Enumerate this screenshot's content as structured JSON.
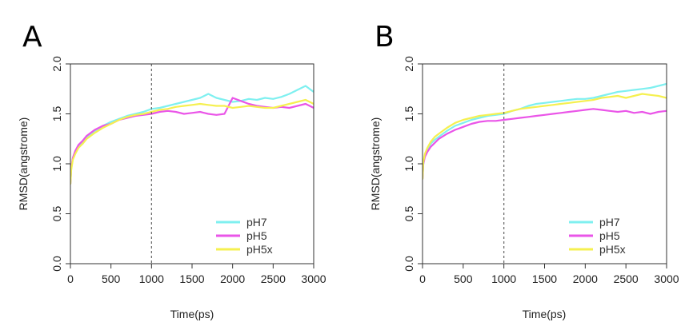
{
  "chart_data": [
    {
      "type": "line",
      "panel_label": "A",
      "xlabel": "Time(ps)",
      "ylabel": "RMSD(angstrome)",
      "xlim": [
        0,
        3000
      ],
      "ylim": [
        0,
        2.0
      ],
      "xticks": [
        "0",
        "500",
        "1000",
        "1500",
        "2000",
        "2500",
        "3000"
      ],
      "yticks": [
        "0.0",
        "0.5",
        "1.0",
        "1.5",
        "2.0"
      ],
      "reference_line_x": 1000,
      "legend_position": "bottom-right",
      "series": [
        {
          "name": "pH7",
          "color": "#7ff0f0",
          "x": [
            0,
            10,
            30,
            60,
            100,
            150,
            200,
            300,
            400,
            500,
            600,
            700,
            800,
            900,
            1000,
            1100,
            1200,
            1300,
            1400,
            1500,
            1600,
            1700,
            1800,
            1900,
            2000,
            2100,
            2200,
            2300,
            2400,
            2500,
            2600,
            2700,
            2800,
            2850,
            2900,
            2950,
            3000
          ],
          "y": [
            0.8,
            0.95,
            1.05,
            1.12,
            1.18,
            1.22,
            1.27,
            1.33,
            1.38,
            1.42,
            1.45,
            1.48,
            1.5,
            1.52,
            1.55,
            1.56,
            1.58,
            1.6,
            1.62,
            1.64,
            1.66,
            1.7,
            1.66,
            1.64,
            1.62,
            1.63,
            1.65,
            1.64,
            1.66,
            1.65,
            1.67,
            1.7,
            1.74,
            1.76,
            1.78,
            1.75,
            1.72
          ]
        },
        {
          "name": "pH5",
          "color": "#ea55e8",
          "x": [
            0,
            10,
            30,
            60,
            100,
            150,
            200,
            300,
            400,
            500,
            600,
            700,
            800,
            900,
            1000,
            1100,
            1200,
            1300,
            1400,
            1500,
            1600,
            1700,
            1800,
            1900,
            2000,
            2100,
            2200,
            2300,
            2400,
            2500,
            2600,
            2700,
            2800,
            2900,
            3000
          ],
          "y": [
            0.8,
            0.96,
            1.06,
            1.13,
            1.19,
            1.23,
            1.28,
            1.34,
            1.38,
            1.4,
            1.44,
            1.46,
            1.48,
            1.49,
            1.5,
            1.52,
            1.53,
            1.52,
            1.5,
            1.51,
            1.52,
            1.5,
            1.49,
            1.5,
            1.66,
            1.63,
            1.6,
            1.58,
            1.57,
            1.56,
            1.57,
            1.56,
            1.58,
            1.6,
            1.56
          ]
        },
        {
          "name": "pH5x",
          "color": "#f5f050",
          "x": [
            0,
            10,
            30,
            60,
            100,
            150,
            200,
            300,
            400,
            500,
            600,
            700,
            800,
            900,
            1000,
            1100,
            1200,
            1300,
            1400,
            1500,
            1600,
            1700,
            1800,
            1900,
            2000,
            2100,
            2200,
            2300,
            2400,
            2500,
            2600,
            2700,
            2800,
            2900,
            3000
          ],
          "y": [
            0.8,
            0.94,
            1.04,
            1.1,
            1.16,
            1.2,
            1.25,
            1.31,
            1.36,
            1.4,
            1.44,
            1.47,
            1.49,
            1.5,
            1.52,
            1.54,
            1.55,
            1.57,
            1.58,
            1.59,
            1.6,
            1.59,
            1.58,
            1.58,
            1.56,
            1.57,
            1.58,
            1.57,
            1.56,
            1.56,
            1.58,
            1.6,
            1.62,
            1.64,
            1.6
          ]
        }
      ]
    },
    {
      "type": "line",
      "panel_label": "B",
      "xlabel": "Time(ps)",
      "ylabel": "RMSD(angstrome)",
      "xlim": [
        0,
        3000
      ],
      "ylim": [
        0,
        2.0
      ],
      "xticks": [
        "0",
        "500",
        "1000",
        "1500",
        "2000",
        "2500",
        "3000"
      ],
      "yticks": [
        "0.0",
        "0.5",
        "1.0",
        "1.5",
        "2.0"
      ],
      "reference_line_x": 1000,
      "legend_position": "bottom-right",
      "series": [
        {
          "name": "pH7",
          "color": "#7ff0f0",
          "x": [
            0,
            10,
            30,
            60,
            100,
            150,
            200,
            300,
            400,
            500,
            600,
            700,
            800,
            900,
            1000,
            1100,
            1200,
            1300,
            1400,
            1500,
            1600,
            1700,
            1800,
            1900,
            2000,
            2100,
            2200,
            2300,
            2400,
            2500,
            2600,
            2700,
            2800,
            2900,
            3000
          ],
          "y": [
            0.85,
            1.0,
            1.08,
            1.14,
            1.2,
            1.24,
            1.27,
            1.33,
            1.38,
            1.41,
            1.44,
            1.46,
            1.48,
            1.49,
            1.5,
            1.53,
            1.55,
            1.58,
            1.6,
            1.61,
            1.62,
            1.63,
            1.64,
            1.65,
            1.65,
            1.66,
            1.68,
            1.7,
            1.72,
            1.73,
            1.74,
            1.75,
            1.76,
            1.78,
            1.8
          ]
        },
        {
          "name": "pH5",
          "color": "#ea55e8",
          "x": [
            0,
            10,
            30,
            60,
            100,
            150,
            200,
            300,
            400,
            500,
            600,
            700,
            800,
            900,
            1000,
            1100,
            1200,
            1300,
            1400,
            1500,
            1600,
            1700,
            1800,
            1900,
            2000,
            2100,
            2200,
            2300,
            2400,
            2500,
            2600,
            2700,
            2800,
            2900,
            3000
          ],
          "y": [
            0.85,
            1.0,
            1.07,
            1.12,
            1.17,
            1.21,
            1.25,
            1.3,
            1.34,
            1.37,
            1.4,
            1.42,
            1.43,
            1.43,
            1.44,
            1.45,
            1.46,
            1.47,
            1.48,
            1.49,
            1.5,
            1.51,
            1.52,
            1.53,
            1.54,
            1.55,
            1.54,
            1.53,
            1.52,
            1.53,
            1.51,
            1.52,
            1.5,
            1.52,
            1.53
          ]
        },
        {
          "name": "pH5x",
          "color": "#f5f050",
          "x": [
            0,
            10,
            30,
            60,
            100,
            150,
            200,
            300,
            400,
            500,
            600,
            700,
            800,
            900,
            1000,
            1100,
            1200,
            1300,
            1400,
            1500,
            1600,
            1700,
            1800,
            1900,
            2000,
            2100,
            2200,
            2300,
            2400,
            2500,
            2600,
            2700,
            2800,
            2900,
            3000
          ],
          "y": [
            0.85,
            1.02,
            1.1,
            1.16,
            1.22,
            1.27,
            1.3,
            1.36,
            1.41,
            1.44,
            1.46,
            1.48,
            1.49,
            1.5,
            1.51,
            1.53,
            1.55,
            1.56,
            1.57,
            1.58,
            1.59,
            1.6,
            1.61,
            1.62,
            1.63,
            1.64,
            1.66,
            1.67,
            1.68,
            1.66,
            1.68,
            1.7,
            1.69,
            1.68,
            1.66
          ]
        }
      ]
    }
  ]
}
